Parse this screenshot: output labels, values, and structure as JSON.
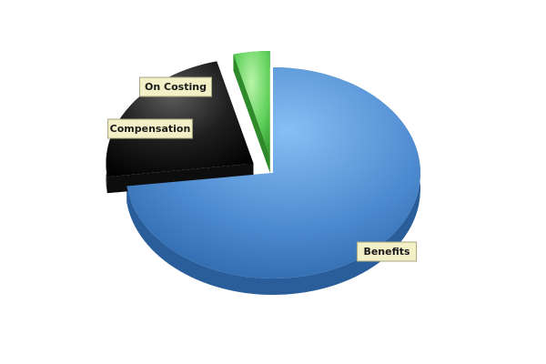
{
  "chart_data": {
    "type": "pie",
    "title": "",
    "style": "3d-exploded",
    "slices": [
      {
        "label": "Benefits",
        "value": 73.0,
        "color": "#5b95d6",
        "exploded": false
      },
      {
        "label": "Compensation",
        "value": 23.0,
        "color": "#1b1b1b",
        "exploded": true
      },
      {
        "label": "On Costing",
        "value": 4.0,
        "color": "#5dd05a",
        "exploded": true
      }
    ],
    "legend": "none"
  }
}
